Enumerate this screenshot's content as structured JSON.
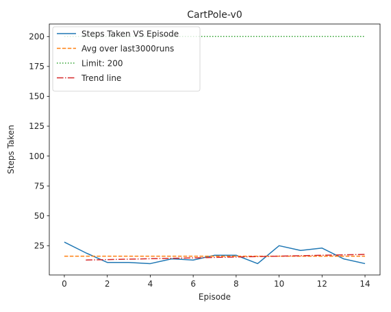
{
  "chart_data": {
    "type": "line",
    "title": "CartPole-v0",
    "xlabel": "Episode",
    "ylabel": "Steps Taken",
    "xlim": [
      -0.7,
      14.7
    ],
    "ylim": [
      0.5,
      210.5
    ],
    "xticks": [
      0,
      2,
      4,
      6,
      8,
      10,
      12,
      14
    ],
    "yticks": [
      25,
      50,
      75,
      100,
      125,
      150,
      175,
      200
    ],
    "grid": false,
    "legend_position": "top-left",
    "series": [
      {
        "name": "Steps Taken VS Episode",
        "style": "solid",
        "color": "#1f77b4",
        "x": [
          0,
          1,
          2,
          3,
          4,
          5,
          6,
          7,
          8,
          9,
          10,
          11,
          12,
          13,
          14
        ],
        "y": [
          28,
          19,
          11,
          11,
          10,
          14,
          13,
          17,
          17,
          10,
          25,
          21,
          23,
          14,
          10
        ]
      },
      {
        "name": "Avg over last3000runs",
        "style": "dashed",
        "color": "#ff7f0e",
        "x": [
          0,
          14
        ],
        "y": [
          16.2,
          16.2
        ]
      },
      {
        "name": "Limit: 200",
        "style": "dotted",
        "color": "#2ca02c",
        "x": [
          0,
          14
        ],
        "y": [
          200,
          200
        ]
      },
      {
        "name": "Trend line",
        "style": "dashdot",
        "color": "#d62728",
        "x": [
          1,
          14
        ],
        "y": [
          13,
          17.7
        ]
      }
    ]
  }
}
